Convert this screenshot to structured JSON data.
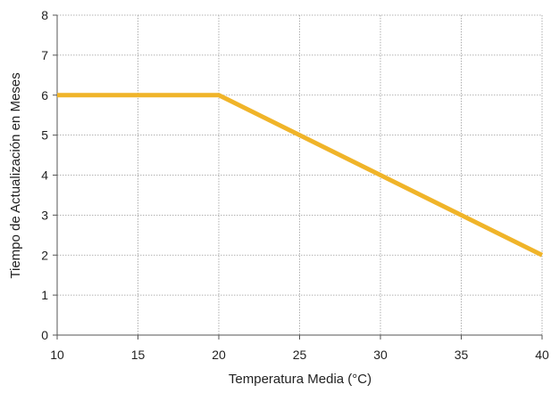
{
  "chart_data": {
    "type": "line",
    "title": "",
    "xlabel": "Temperatura Media (°C)",
    "ylabel": "Tiempo de Actualización en Meses",
    "xlim": [
      10,
      40
    ],
    "ylim": [
      0,
      8
    ],
    "x_ticks": [
      10,
      15,
      20,
      25,
      30,
      35,
      40
    ],
    "y_ticks": [
      0,
      1,
      2,
      3,
      4,
      5,
      6,
      7,
      8
    ],
    "grid": true,
    "series": [
      {
        "color": "#f0b429",
        "x": [
          10,
          20,
          25,
          30,
          35,
          40
        ],
        "y": [
          6,
          6,
          5,
          4,
          3,
          2
        ]
      }
    ]
  },
  "colors": {
    "line": "#f0b429",
    "grid": "#9a9a9a",
    "axis": "#555555",
    "text": "#222222"
  }
}
